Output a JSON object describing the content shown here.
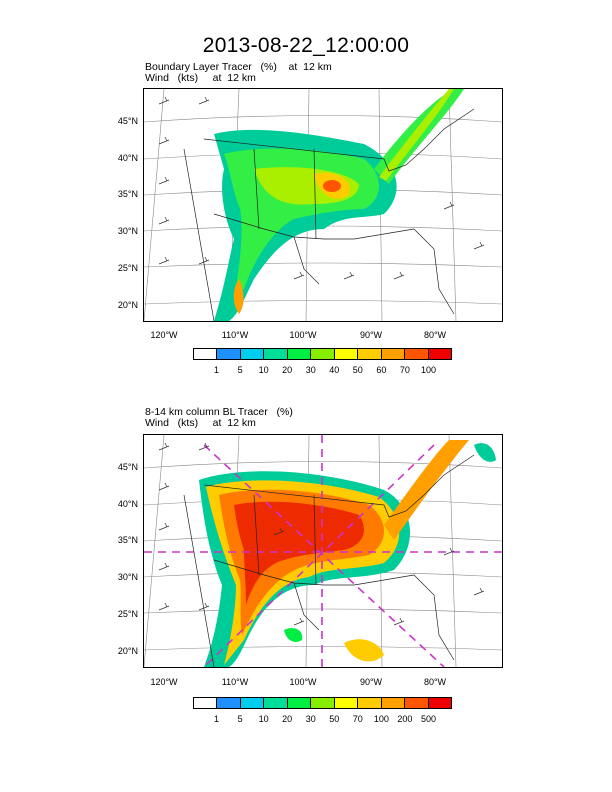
{
  "title": "2013-08-22_12:00:00",
  "panels": [
    {
      "id": "top",
      "subtitle_line1": "Boundary Layer Tracer   (%)    at  12 km",
      "subtitle_line2": "Wind   (kts)     at  12 km",
      "lat_labels": [
        "45°N",
        "40°N",
        "35°N",
        "30°N",
        "25°N",
        "20°N"
      ],
      "lon_labels": [
        "120°W",
        "110°W",
        "100°W",
        "90°W",
        "80°W"
      ],
      "colorbar_labels": [
        "1",
        "5",
        "10",
        "20",
        "30",
        "40",
        "50",
        "60",
        "70",
        "100"
      ],
      "colorbar_colors": [
        "#ffffff",
        "#1e90ff",
        "#00ccee",
        "#00dd99",
        "#00ee44",
        "#88ee00",
        "#ffff00",
        "#ffcc00",
        "#ffa000",
        "#ff5500",
        "#ee0000"
      ]
    },
    {
      "id": "bottom",
      "subtitle_line1": "8-14 km column BL Tracer   (%)",
      "subtitle_line2": "Wind   (kts)     at  12 km",
      "lat_labels": [
        "45°N",
        "40°N",
        "35°N",
        "30°N",
        "25°N",
        "20°N"
      ],
      "lon_labels": [
        "120°W",
        "110°W",
        "100°W",
        "90°W",
        "80°W"
      ],
      "colorbar_labels": [
        "1",
        "5",
        "10",
        "20",
        "30",
        "50",
        "70",
        "100",
        "200",
        "500"
      ],
      "colorbar_colors": [
        "#ffffff",
        "#1e90ff",
        "#00ccee",
        "#00dd99",
        "#00ee44",
        "#88ee00",
        "#ffff00",
        "#ffcc00",
        "#ffa000",
        "#ff5500",
        "#ee0000"
      ]
    }
  ]
}
